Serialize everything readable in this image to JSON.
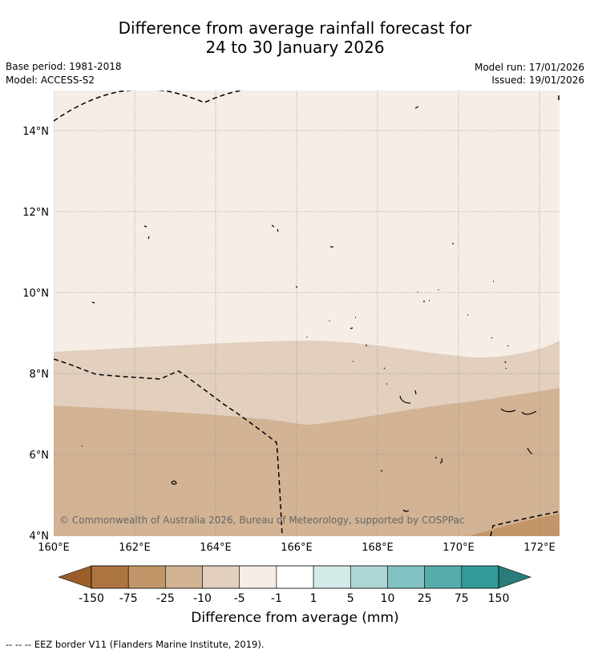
{
  "header": {
    "title_line1": "Difference from average rainfall forecast for",
    "title_line2": "24 to 30 January 2026",
    "base_period": "Base period: 1981-2018",
    "model": "Model: ACCESS-S2",
    "model_run": "Model run: 17/01/2026",
    "issued": "Issued: 19/01/2026"
  },
  "map": {
    "lat_labels": [
      "14°N",
      "12°N",
      "10°N",
      "8°N",
      "6°N",
      "4°N"
    ],
    "lon_labels": [
      "160°E",
      "162°E",
      "164°E",
      "166°E",
      "168°E",
      "170°E",
      "172°E"
    ],
    "copyright": "© Commonwealth of Australia 2026, Bureau of Meteorology, supported by COSPPac",
    "colors": {
      "band_minus1_to_minus5": "#f5ede6",
      "band_minus5_to_minus10": "#e2cfbe",
      "band_minus10_to_minus25": "#d2b394",
      "band_minus25_to_minus75": "#c29668",
      "border": "#000000"
    }
  },
  "colorbar": {
    "title": "Difference from average (mm)",
    "tick_labels": [
      "-150",
      "-75",
      "-25",
      "-10",
      "-5",
      "-1",
      "1",
      "5",
      "10",
      "25",
      "75",
      "150"
    ],
    "colors": [
      "#ac7540",
      "#c29668",
      "#d2b394",
      "#e2cfbe",
      "#f5ede6",
      "#ffffff",
      "#d3eae8",
      "#acd6d4",
      "#83c2c2",
      "#58acac",
      "#329a98"
    ],
    "under_color": "#9a5e2b",
    "over_color": "#2a7c7a"
  },
  "footer": {
    "legend": "--  --  -- EEZ border V11 (Flanders Marine Institute, 2019)."
  }
}
